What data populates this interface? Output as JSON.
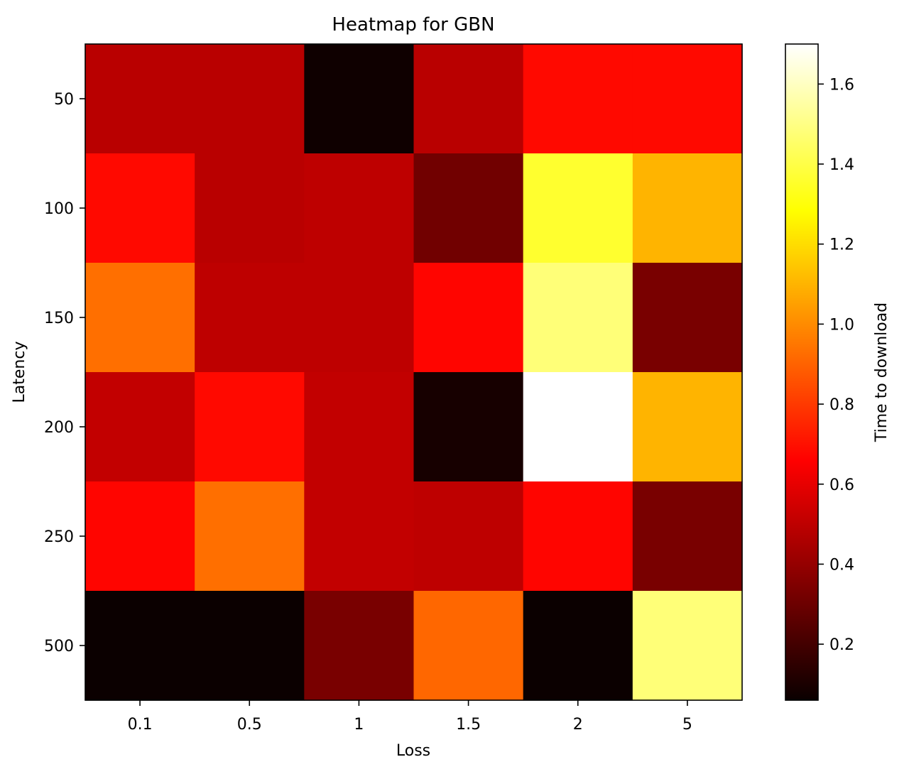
{
  "chart_data": {
    "type": "heatmap",
    "title": "Heatmap for GBN",
    "xlabel": "Loss",
    "ylabel": "Latency",
    "x_categories": [
      "0.1",
      "0.5",
      "1",
      "1.5",
      "2",
      "5"
    ],
    "y_categories": [
      "50",
      "100",
      "150",
      "200",
      "250",
      "500"
    ],
    "values": [
      [
        0.47,
        0.47,
        0.07,
        0.47,
        0.68,
        0.68
      ],
      [
        0.68,
        0.47,
        0.48,
        0.3,
        1.36,
        1.1
      ],
      [
        0.93,
        0.48,
        0.48,
        0.67,
        1.48,
        0.32
      ],
      [
        0.49,
        0.68,
        0.49,
        0.09,
        1.7,
        1.1
      ],
      [
        0.67,
        0.93,
        0.49,
        0.48,
        0.67,
        0.32
      ],
      [
        0.06,
        0.06,
        0.32,
        0.91,
        0.06,
        1.48
      ]
    ],
    "colormap": "hot",
    "color_range": [
      0.06,
      1.7
    ],
    "colorbar": {
      "label": "Time to download",
      "ticks": [
        0.2,
        0.4,
        0.6,
        0.8,
        1.0,
        1.2,
        1.4,
        1.6
      ],
      "tick_labels": [
        "0.2",
        "0.4",
        "0.6",
        "0.8",
        "1.0",
        "1.2",
        "1.4",
        "1.6"
      ]
    }
  }
}
